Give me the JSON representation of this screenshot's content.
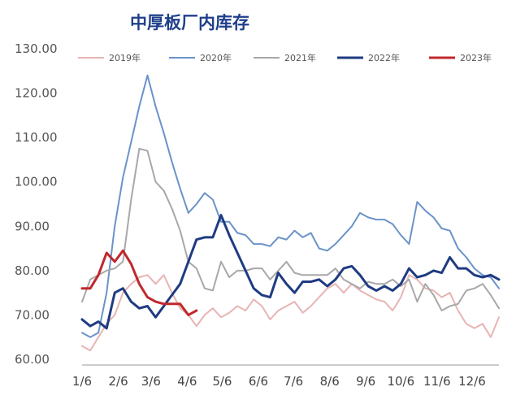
{
  "chart_data": {
    "type": "line",
    "title": "中厚板厂内库存",
    "xlabel": "",
    "ylabel": "",
    "ylim": [
      60,
      130
    ],
    "yticks": [
      "60.00",
      "70.00",
      "80.00",
      "90.00",
      "100.00",
      "110.00",
      "120.00",
      "130.00"
    ],
    "xticks": [
      {
        "label": "1/6",
        "week": 0
      },
      {
        "label": "2/6",
        "week": 4.43
      },
      {
        "label": "3/6",
        "week": 8.43
      },
      {
        "label": "4/6",
        "week": 12.86
      },
      {
        "label": "5/6",
        "week": 17.14
      },
      {
        "label": "6/6",
        "week": 21.57
      },
      {
        "label": "7/6",
        "week": 25.86
      },
      {
        "label": "8/6",
        "week": 30.29
      },
      {
        "label": "9/6",
        "week": 34.71
      },
      {
        "label": "10/6",
        "week": 39.0
      },
      {
        "label": "11/6",
        "week": 43.43
      },
      {
        "label": "12/6",
        "week": 47.71
      }
    ],
    "x_axis_max_week": 51,
    "legend": [
      "2019年",
      "2020年",
      "2021年",
      "2022年",
      "2023年"
    ],
    "series": [
      {
        "name": "2019年",
        "color": "#e8b4b4",
        "values": [
          63.0,
          62.0,
          65.0,
          68.0,
          70.0,
          75.0,
          77.0,
          78.5,
          79.0,
          77.0,
          79.0,
          75.0,
          71.5,
          70.0,
          67.5,
          70.0,
          71.5,
          69.5,
          70.5,
          72.0,
          71.0,
          73.5,
          72.0,
          69.0,
          71.0,
          72.0,
          73.0,
          70.5,
          72.0,
          74.0,
          76.0,
          77.0,
          75.0,
          77.0,
          75.5,
          74.5,
          73.5,
          73.0,
          71.0,
          74.0,
          79.0,
          78.0,
          76.0,
          75.5,
          74.0,
          75.0,
          71.0,
          68.0,
          67.0,
          68.0,
          65.0,
          69.5
        ]
      },
      {
        "name": "2020年",
        "color": "#6b93c9",
        "values": [
          66.0,
          65.0,
          66.0,
          75.0,
          90.0,
          101.0,
          109.0,
          117.0,
          124.0,
          117.0,
          111.0,
          104.5,
          98.5,
          93.0,
          95.0,
          97.5,
          96.0,
          91.0,
          91.0,
          88.5,
          88.0,
          86.0,
          86.0,
          85.5,
          87.5,
          87.0,
          89.0,
          87.5,
          88.5,
          85.0,
          84.5,
          86.0,
          88.0,
          90.0,
          93.0,
          92.0,
          91.5,
          91.5,
          90.5,
          88.0,
          86.0,
          95.5,
          93.5,
          92.0,
          89.5,
          89.0,
          85.0,
          83.0,
          80.5,
          79.0,
          78.5,
          76.0
        ]
      },
      {
        "name": "2021年",
        "color": "#a8a8a8",
        "values": [
          73.0,
          78.0,
          79.0,
          80.0,
          80.5,
          82.0,
          96.0,
          107.5,
          107.0,
          100.0,
          98.0,
          94.0,
          89.0,
          82.0,
          80.5,
          76.0,
          75.5,
          82.0,
          78.5,
          80.0,
          80.0,
          80.5,
          80.5,
          78.0,
          80.0,
          82.0,
          79.5,
          79.0,
          79.0,
          79.0,
          79.0,
          80.5,
          78.0,
          77.0,
          76.0,
          77.5,
          77.0,
          77.0,
          78.0,
          76.5,
          78.0,
          73.0,
          77.0,
          74.5,
          71.0,
          72.0,
          72.5,
          75.5,
          76.0,
          77.0,
          74.5,
          71.5
        ]
      },
      {
        "name": "2022年",
        "color": "#1f3b82",
        "values": [
          69.0,
          67.5,
          68.5,
          67.0,
          75.0,
          76.0,
          73.0,
          71.5,
          72.0,
          69.5,
          72.0,
          74.5,
          77.0,
          82.0,
          87.0,
          87.5,
          87.5,
          92.5,
          88.0,
          84.0,
          80.0,
          76.0,
          74.5,
          74.0,
          79.5,
          77.0,
          75.0,
          77.5,
          77.5,
          78.0,
          76.5,
          78.0,
          80.5,
          81.0,
          79.0,
          76.5,
          75.5,
          76.5,
          75.5,
          77.0,
          80.5,
          78.5,
          79.0,
          80.0,
          79.5,
          83.0,
          80.5,
          80.5,
          79.0,
          78.5,
          79.0,
          78.0
        ]
      },
      {
        "name": "2023年",
        "color": "#c0282d",
        "values": [
          76.0,
          76.0,
          79.0,
          84.0,
          82.0,
          84.5,
          81.5,
          77.0,
          74.0,
          73.0,
          72.5,
          72.5,
          72.5,
          70.0,
          71.0
        ]
      }
    ]
  }
}
